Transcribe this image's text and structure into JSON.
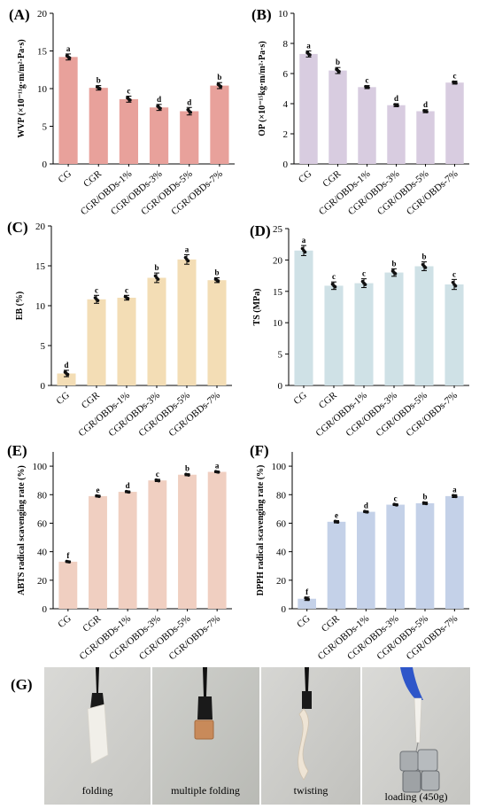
{
  "chart_data": [
    {
      "id": "A",
      "panel_label": "(A)",
      "type": "bar",
      "ylabel": "WVP (×10⁻¹¹g·m/m²·Pa·s)",
      "ylim": [
        0,
        20
      ],
      "yticks": [
        "0",
        "5",
        "10",
        "15",
        "20"
      ],
      "categories": [
        "CG",
        "CGR",
        "CGR/OBDs-1%",
        "CGR/OBDs-3%",
        "CGR/OBDs-5%",
        "CGR/OBDs-7%"
      ],
      "values": [
        14.2,
        10.1,
        8.6,
        7.5,
        7.0,
        10.4
      ],
      "errors": [
        0.4,
        0.3,
        0.4,
        0.4,
        0.5,
        0.4
      ],
      "letters": [
        "a",
        "b",
        "c",
        "d",
        "d",
        "b"
      ],
      "color": "#e8a19b"
    },
    {
      "id": "B",
      "panel_label": "(B)",
      "type": "bar",
      "ylabel": "OP (×10⁻¹⁵kg·m/m²·Pa·s)",
      "ylim": [
        0,
        10
      ],
      "yticks": [
        "0",
        "2",
        "4",
        "6",
        "8",
        "10"
      ],
      "categories": [
        "CG",
        "CGR",
        "CGR/OBDs-1%",
        "CGR/OBDs-3%",
        "CGR/OBDs-5%",
        "CGR/OBDs-7%"
      ],
      "values": [
        7.3,
        6.2,
        5.1,
        3.9,
        3.5,
        5.4
      ],
      "errors": [
        0.2,
        0.2,
        0.1,
        0.1,
        0.1,
        0.1
      ],
      "letters": [
        "a",
        "b",
        "c",
        "d",
        "d",
        "c"
      ],
      "color": "#d8cce0"
    },
    {
      "id": "C",
      "panel_label": "(C)",
      "type": "bar",
      "ylabel": "EB (%)",
      "ylim": [
        0,
        20
      ],
      "yticks": [
        "0",
        "5",
        "10",
        "15",
        "20"
      ],
      "categories": [
        "CG",
        "CGR",
        "CGR/OBDs-1%",
        "CGR/OBDs-3%",
        "CGR/OBDs-5%",
        "CGR/OBDs-7%"
      ],
      "values": [
        1.5,
        10.8,
        11.0,
        13.5,
        15.8,
        13.2
      ],
      "errors": [
        0.4,
        0.5,
        0.3,
        0.6,
        0.6,
        0.3
      ],
      "letters": [
        "d",
        "c",
        "c",
        "b",
        "a",
        "b"
      ],
      "color": "#f3ddb5"
    },
    {
      "id": "D",
      "panel_label": "(D)",
      "type": "bar",
      "ylabel": "TS (MPa)",
      "ylim": [
        0,
        25
      ],
      "yticks": [
        "0",
        "5",
        "10",
        "15",
        "20",
        "25"
      ],
      "categories": [
        "CG",
        "CGR",
        "CGR/OBDs-1%",
        "CGR/OBDs-3%",
        "CGR/OBDs-5%",
        "CGR/OBDs-7%"
      ],
      "values": [
        21.5,
        15.9,
        16.3,
        18.0,
        19.0,
        16.1
      ],
      "errors": [
        0.8,
        0.6,
        0.7,
        0.6,
        0.7,
        0.8
      ],
      "letters": [
        "a",
        "c",
        "c",
        "b",
        "b",
        "c"
      ],
      "color": "#cfe1e6"
    },
    {
      "id": "E",
      "panel_label": "(E)",
      "type": "bar",
      "ylabel": "ABTS radical scavenging rate (%)",
      "ylim": [
        0,
        110
      ],
      "yticks": [
        "0",
        "20",
        "40",
        "60",
        "80",
        "100"
      ],
      "categories": [
        "CG",
        "CGR",
        "CGR/OBDs-1%",
        "CGR/OBDs-3%",
        "CGR/OBDs-5%",
        "CGR/OBDs-7%"
      ],
      "values": [
        33,
        79,
        82,
        90,
        94,
        96
      ],
      "errors": [
        0.5,
        0.6,
        0.6,
        0.8,
        0.7,
        0.5
      ],
      "letters": [
        "f",
        "e",
        "d",
        "c",
        "b",
        "a"
      ],
      "color": "#f0cfc1"
    },
    {
      "id": "F",
      "panel_label": "(F)",
      "type": "bar",
      "ylabel": "DPPH radical scavenging rate (%)",
      "ylim": [
        0,
        110
      ],
      "yticks": [
        "0",
        "20",
        "40",
        "60",
        "80",
        "100"
      ],
      "categories": [
        "CG",
        "CGR",
        "CGR/OBDs-1%",
        "CGR/OBDs-3%",
        "CGR/OBDs-5%",
        "CGR/OBDs-7%"
      ],
      "values": [
        7,
        61,
        68,
        73,
        74,
        79
      ],
      "errors": [
        1.2,
        0.8,
        0.6,
        0.6,
        0.8,
        1.0
      ],
      "letters": [
        "f",
        "e",
        "d",
        "c",
        "b",
        "a"
      ],
      "color": "#c4d1e8"
    }
  ],
  "photos": {
    "panel_label": "(G)",
    "captions": [
      "folding",
      "multiple folding",
      "twisting",
      "loading (450g)"
    ]
  }
}
